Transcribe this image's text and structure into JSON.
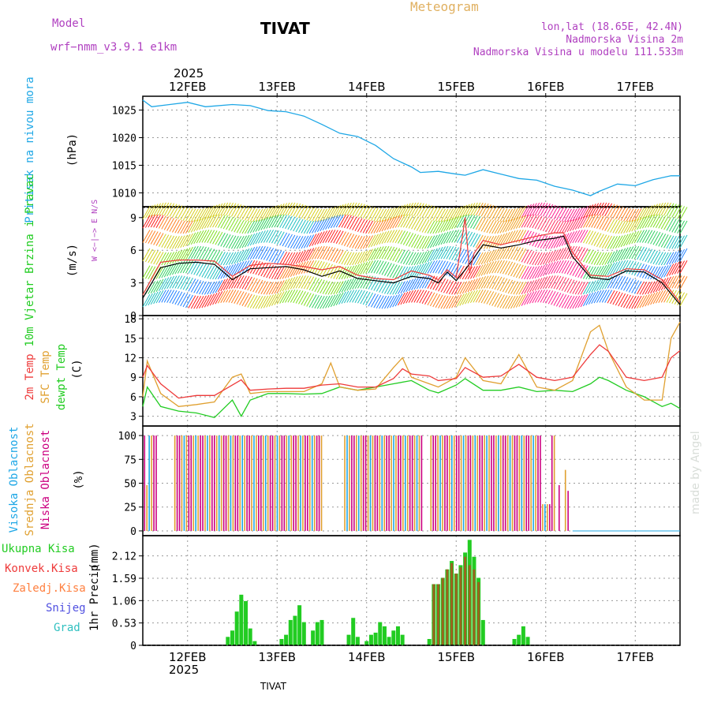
{
  "header": {
    "model_label": "Model",
    "model_name": "wrf−nmm_v3.9.1  e1km",
    "station": "TIVAT",
    "title": "Meteogram",
    "coords": "lon,lat (18.65E, 42.4N)",
    "elevation": "Nadmorska Visina 2m",
    "model_elevation": "Nadmorska Visina u modelu 111.533m"
  },
  "footer": {
    "station": "TIVAT",
    "credit": "made by Angel"
  },
  "time_axis": {
    "year": "2025",
    "days": [
      "12FEB",
      "13FEB",
      "14FEB",
      "15FEB",
      "16FEB",
      "17FEB"
    ],
    "start_day": 11.5,
    "end_day": 17.5
  },
  "colors": {
    "pressure": "#1ea7e6",
    "temp2m": "#ee3a3a",
    "sfc_temp": "#e0a030",
    "dewpt": "#22cc22",
    "cloud_high": "#1ea7e6",
    "cloud_mid": "#e0a030",
    "cloud_low": "#cc0080",
    "precip_total": "#22cc22",
    "precip_conv": "#ee3a3a",
    "precip_frz": "#ff8040",
    "precip_snow": "#5050e0",
    "precip_hail": "#30c0c0",
    "model_text": "#b040c0"
  },
  "chart_data": [
    {
      "type": "line",
      "panel": "pressure",
      "ylabel": "Pritisak na nivou mora",
      "unit": "(hPa)",
      "yticks": [
        1010,
        1015,
        1020,
        1025
      ],
      "ylim": [
        1007.5,
        1027.5
      ],
      "series": [
        {
          "x": [
            11.5,
            11.6,
            11.8,
            12.0,
            12.2,
            12.5,
            12.7,
            12.9,
            13.1,
            13.3,
            13.5,
            13.7,
            13.9,
            14.1,
            14.3,
            14.5,
            14.6,
            14.8,
            15.0,
            15.1,
            15.3,
            15.5,
            15.7,
            15.9,
            16.1,
            16.3,
            16.5,
            16.6,
            16.8,
            17.0,
            17.2,
            17.4,
            17.5
          ],
          "values": [
            1026.8,
            1025.6,
            1026.0,
            1026.4,
            1025.6,
            1026.0,
            1025.8,
            1024.9,
            1024.7,
            1023.9,
            1022.4,
            1020.8,
            1020.2,
            1018.6,
            1016.2,
            1014.7,
            1013.7,
            1013.9,
            1013.4,
            1013.2,
            1014.2,
            1013.4,
            1012.6,
            1012.3,
            1011.2,
            1010.5,
            1009.5,
            1010.3,
            1011.6,
            1011.3,
            1012.4,
            1013.1,
            1013.1
          ]
        }
      ]
    },
    {
      "type": "line",
      "panel": "wind",
      "ylabel": "10m Vjetar Brzina i Pravac",
      "unit": "(m/s)",
      "compass": "W <−|−> E  N/S",
      "yticks": [
        0,
        3,
        6,
        9
      ],
      "ylim": [
        0,
        10
      ],
      "series": [
        {
          "name": "speed",
          "x": [
            11.5,
            11.7,
            11.9,
            12.1,
            12.3,
            12.5,
            12.7,
            12.9,
            13.1,
            13.3,
            13.5,
            13.7,
            13.9,
            14.1,
            14.3,
            14.5,
            14.7,
            14.8,
            14.9,
            15.0,
            15.1,
            15.2,
            15.3,
            15.5,
            15.7,
            15.9,
            16.1,
            16.2,
            16.3,
            16.5,
            16.7,
            16.9,
            17.1,
            17.3,
            17.5
          ],
          "values": [
            1.6,
            4.4,
            4.8,
            4.9,
            4.7,
            3.3,
            4.3,
            4.4,
            4.5,
            4.2,
            3.6,
            4.1,
            3.4,
            3.2,
            3.0,
            3.6,
            3.4,
            3.0,
            4.0,
            3.2,
            4.2,
            5.3,
            6.5,
            6.2,
            6.5,
            6.9,
            7.1,
            7.3,
            5.4,
            3.5,
            3.3,
            4.1,
            4.0,
            3.0,
            1.0
          ]
        },
        {
          "name": "gust",
          "x": [
            11.5,
            11.7,
            11.9,
            12.1,
            12.3,
            12.5,
            12.7,
            12.9,
            13.1,
            13.3,
            13.5,
            13.7,
            13.9,
            14.1,
            14.3,
            14.5,
            14.7,
            14.8,
            14.9,
            15.0,
            15.1,
            15.15,
            15.2,
            15.3,
            15.5,
            15.7,
            15.9,
            16.1,
            16.2,
            16.3,
            16.5,
            16.7,
            16.9,
            17.1,
            17.3,
            17.5
          ],
          "values": [
            1.9,
            4.9,
            5.1,
            5.1,
            5.0,
            3.6,
            4.6,
            4.8,
            4.7,
            4.5,
            4.2,
            4.5,
            3.7,
            3.4,
            3.3,
            4.1,
            3.7,
            3.3,
            4.2,
            3.5,
            9.0,
            3.9,
            5.7,
            6.9,
            6.5,
            6.9,
            7.3,
            7.6,
            7.6,
            5.8,
            3.7,
            3.6,
            4.3,
            4.2,
            3.3,
            1.2
          ]
        }
      ]
    },
    {
      "type": "line",
      "panel": "temperature",
      "unit": "(C)",
      "yticks": [
        3,
        6,
        9,
        12,
        15,
        18
      ],
      "ylim": [
        1.5,
        18.5
      ],
      "series": [
        {
          "name": "2m Temp",
          "x": [
            11.5,
            11.55,
            11.7,
            11.9,
            12.1,
            12.3,
            12.5,
            12.6,
            12.7,
            12.9,
            13.1,
            13.3,
            13.5,
            13.7,
            13.9,
            14.1,
            14.3,
            14.4,
            14.5,
            14.7,
            14.8,
            15.0,
            15.1,
            15.3,
            15.5,
            15.7,
            15.9,
            16.1,
            16.3,
            16.5,
            16.6,
            16.7,
            16.9,
            17.1,
            17.3,
            17.4,
            17.5
          ],
          "values": [
            9.0,
            10.8,
            8.0,
            5.8,
            6.2,
            6.2,
            7.8,
            8.6,
            7.0,
            7.2,
            7.3,
            7.3,
            7.8,
            8.0,
            7.5,
            7.5,
            8.8,
            10.3,
            9.5,
            9.2,
            8.5,
            8.8,
            10.5,
            9.0,
            9.2,
            11.0,
            9.0,
            8.5,
            9.0,
            12.5,
            14.0,
            13.0,
            9.0,
            8.5,
            9.0,
            12.0,
            13.1
          ]
        },
        {
          "name": "SFC Temp",
          "x": [
            11.5,
            11.55,
            11.7,
            11.9,
            12.1,
            12.3,
            12.5,
            12.6,
            12.7,
            12.9,
            13.1,
            13.3,
            13.5,
            13.6,
            13.7,
            13.9,
            14.1,
            14.3,
            14.4,
            14.5,
            14.7,
            14.8,
            15.0,
            15.1,
            15.3,
            15.5,
            15.7,
            15.9,
            16.1,
            16.3,
            16.5,
            16.6,
            16.7,
            16.9,
            17.1,
            17.3,
            17.4,
            17.5
          ],
          "values": [
            6.0,
            11.5,
            6.5,
            4.5,
            4.8,
            5.2,
            9.0,
            9.5,
            6.5,
            6.8,
            6.8,
            6.8,
            8.0,
            11.2,
            7.5,
            7.0,
            7.2,
            10.5,
            12.0,
            9.0,
            8.0,
            7.5,
            9.0,
            12.0,
            8.5,
            8.0,
            12.5,
            7.5,
            7.0,
            8.5,
            16.0,
            17.0,
            13.0,
            7.5,
            5.5,
            5.5,
            15.0,
            17.5
          ]
        },
        {
          "name": "dewpt Temp",
          "x": [
            11.5,
            11.55,
            11.7,
            11.9,
            12.1,
            12.3,
            12.5,
            12.6,
            12.7,
            12.9,
            13.1,
            13.3,
            13.5,
            13.7,
            13.9,
            14.1,
            14.3,
            14.5,
            14.7,
            14.8,
            15.0,
            15.1,
            15.3,
            15.5,
            15.7,
            15.9,
            16.1,
            16.3,
            16.5,
            16.6,
            16.7,
            16.9,
            17.1,
            17.3,
            17.4,
            17.5
          ],
          "values": [
            4.5,
            7.5,
            4.5,
            3.8,
            3.5,
            2.8,
            5.5,
            3.0,
            5.5,
            6.5,
            6.5,
            6.4,
            6.5,
            7.5,
            7.0,
            7.5,
            8.0,
            8.5,
            7.0,
            6.6,
            7.8,
            8.8,
            7.0,
            7.0,
            7.5,
            6.8,
            7.0,
            6.8,
            8.0,
            9.0,
            8.5,
            7.0,
            6.0,
            4.5,
            5.0,
            4.2
          ]
        }
      ]
    },
    {
      "type": "bar",
      "panel": "cloud",
      "unit": "(%)",
      "yticks": [
        0,
        25,
        50,
        75,
        100
      ],
      "ylim": [
        -5,
        110
      ],
      "series": [
        {
          "name": "Visoka Oblacnost"
        },
        {
          "name": "Srednja Oblacnost"
        },
        {
          "name": "Niska Oblacnost"
        }
      ],
      "summary": "Mostly 100% mid and low cloud bars between 12FEB and 16FEB, dropping to 0 after 16FEB 06h"
    },
    {
      "type": "bar",
      "panel": "precip",
      "ylabel": "1hr Precip",
      "unit": "(mm)",
      "yticks": [
        "0",
        "0.53",
        "1.06",
        "1.59",
        "2.12"
      ],
      "ylim": [
        0,
        2.6
      ],
      "series": [
        {
          "name": "Ukupna Kisa"
        },
        {
          "name": "Konvek.Kisa"
        },
        {
          "name": "Zaledj.Kisa"
        },
        {
          "name": "Snijeg"
        },
        {
          "name": "Grad"
        }
      ],
      "total_x": [
        12.45,
        12.5,
        12.55,
        12.6,
        12.65,
        12.7,
        12.75,
        13.05,
        13.1,
        13.15,
        13.2,
        13.25,
        13.3,
        13.4,
        13.45,
        13.5,
        13.8,
        13.85,
        13.9,
        14.0,
        14.05,
        14.1,
        14.15,
        14.2,
        14.25,
        14.3,
        14.35,
        14.4,
        14.7,
        14.75,
        14.8,
        14.85,
        14.9,
        14.95,
        15.0,
        15.05,
        15.1,
        15.15,
        15.2,
        15.25,
        15.3,
        15.65,
        15.7,
        15.75,
        15.8
      ],
      "total_values": [
        0.2,
        0.35,
        0.8,
        1.2,
        1.05,
        0.4,
        0.1,
        0.15,
        0.25,
        0.6,
        0.7,
        0.95,
        0.55,
        0.35,
        0.55,
        0.6,
        0.25,
        0.65,
        0.2,
        0.1,
        0.25,
        0.3,
        0.55,
        0.45,
        0.2,
        0.35,
        0.45,
        0.25,
        0.15,
        1.45,
        1.45,
        1.6,
        1.8,
        2.0,
        1.7,
        1.9,
        2.2,
        2.5,
        2.1,
        1.6,
        0.6,
        0.15,
        0.25,
        0.45,
        0.2
      ],
      "conv_x": [
        14.75,
        14.8,
        14.85,
        14.9,
        14.95,
        15.0,
        15.05,
        15.1,
        15.15,
        15.2,
        15.25
      ],
      "conv_values": [
        1.45,
        1.45,
        1.6,
        1.8,
        1.95,
        1.7,
        1.85,
        2.1,
        1.9,
        1.8,
        1.5
      ]
    }
  ]
}
